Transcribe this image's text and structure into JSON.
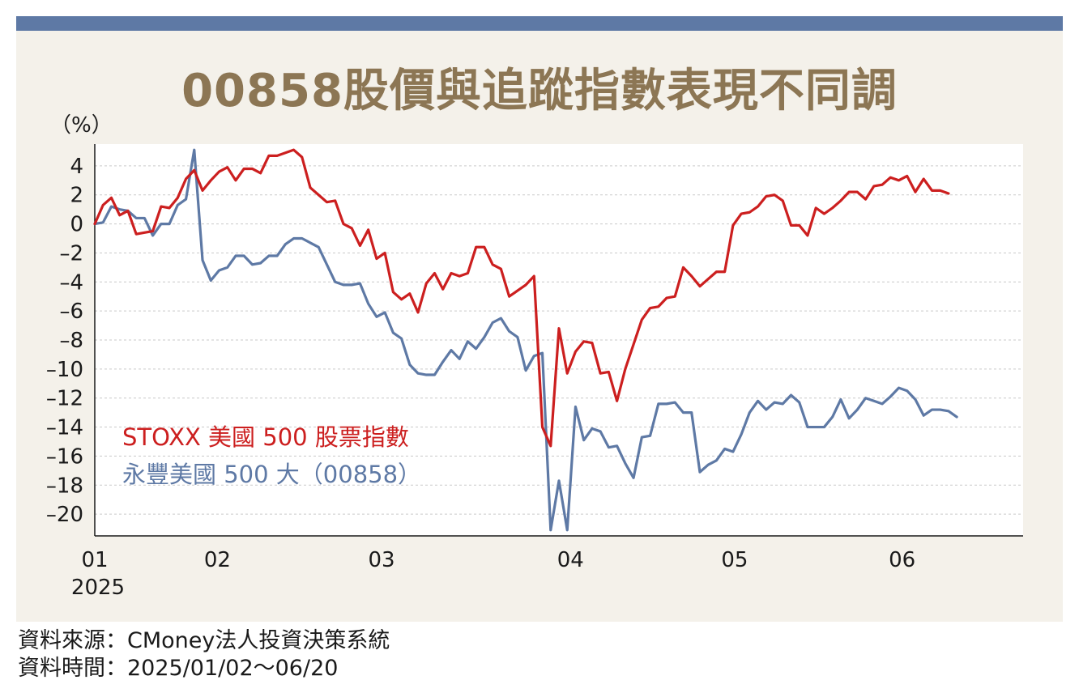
{
  "title": "00858股價與追蹤指數表現不同調",
  "footer": {
    "source": "資料來源：CMoney法人投資決策系統",
    "period": "資料時間：2025/01/02～06/20"
  },
  "colors": {
    "series_1": "#cc1f1f",
    "series_2": "#5e79a5",
    "title": "#8c7654",
    "top_bar": "#5e79a5"
  },
  "chart_data": {
    "type": "line",
    "ylabel": "（%）",
    "ylim": [
      -21.5,
      5.5
    ],
    "yticks": [
      4,
      2,
      0,
      -2,
      -4,
      -6,
      -8,
      -10,
      -12,
      -14,
      -16,
      -18,
      -20
    ],
    "ytick_labels": [
      "4",
      "2",
      "0",
      "–2",
      "–4",
      "–6",
      "–8",
      "–10",
      "–12",
      "–14",
      "–16",
      "–18",
      "–20"
    ],
    "xlim": [
      0,
      112
    ],
    "xticks": [
      {
        "pos": 0,
        "label": "01",
        "sublabel": "2025"
      },
      {
        "pos": 14.8,
        "label": "02",
        "sublabel": ""
      },
      {
        "pos": 34.6,
        "label": "03",
        "sublabel": ""
      },
      {
        "pos": 57.4,
        "label": "04",
        "sublabel": ""
      },
      {
        "pos": 77.2,
        "label": "05",
        "sublabel": ""
      },
      {
        "pos": 97.4,
        "label": "06",
        "sublabel": ""
      }
    ],
    "grid": true,
    "series": [
      {
        "name": "STOXX 美國 500 股票指數",
        "values": [
          0,
          1.3,
          1.8,
          0.6,
          0.9,
          -0.7,
          -0.6,
          -0.5,
          1.2,
          1.1,
          1.8,
          3.1,
          3.7,
          2.3,
          3.0,
          3.6,
          3.9,
          3.0,
          3.8,
          3.8,
          3.5,
          4.7,
          4.7,
          4.9,
          5.1,
          4.6,
          2.5,
          2.0,
          1.5,
          1.6,
          0,
          -0.3,
          -1.5,
          -0.4,
          -2.4,
          -2.0,
          -4.7,
          -5.2,
          -4.8,
          -6.1,
          -4.1,
          -3.4,
          -4.5,
          -3.4,
          -3.6,
          -3.4,
          -1.6,
          -1.6,
          -2.8,
          -3.1,
          -5.0,
          -4.6,
          -4.2,
          -3.6,
          -14.0,
          -15.3,
          -7.2,
          -10.3,
          -8.8,
          -8.1,
          -8.2,
          -10.3,
          -10.2,
          -12.2,
          -10.0,
          -8.3,
          -6.6,
          -5.8,
          -5.7,
          -5.1,
          -5.0,
          -3.0,
          -3.6,
          -4.3,
          -3.8,
          -3.3,
          -3.3,
          -0.1,
          0.7,
          0.8,
          1.2,
          1.9,
          2.0,
          1.6,
          -0.1,
          -0.1,
          -0.8,
          1.1,
          0.7,
          1.1,
          1.6,
          2.2,
          2.2,
          1.7,
          2.6,
          2.7,
          3.2,
          3.0,
          3.3,
          2.2,
          3.1,
          2.3,
          2.3,
          2.1
        ]
      },
      {
        "name": "永豐美國 500 大（00858）",
        "values": [
          0,
          0.1,
          1.2,
          1.0,
          0.9,
          0.4,
          0.4,
          -0.8,
          0,
          0,
          1.3,
          1.7,
          5.1,
          -2.5,
          -3.9,
          -3.2,
          -3.0,
          -2.2,
          -2.2,
          -2.8,
          -2.7,
          -2.2,
          -2.2,
          -1.4,
          -1.0,
          -1.0,
          -1.3,
          -1.6,
          -2.8,
          -4.0,
          -4.2,
          -4.2,
          -4.1,
          -5.5,
          -6.4,
          -6.1,
          -7.5,
          -7.9,
          -9.7,
          -10.3,
          -10.4,
          -10.4,
          -9.5,
          -8.7,
          -9.3,
          -8.1,
          -8.6,
          -7.8,
          -6.8,
          -6.5,
          -7.4,
          -7.8,
          -10.1,
          -9.1,
          -8.9,
          -21.1,
          -17.7,
          -21.1,
          -12.6,
          -14.9,
          -14.1,
          -14.3,
          -15.4,
          -15.3,
          -16.5,
          -17.5,
          -14.7,
          -14.6,
          -12.4,
          -12.4,
          -12.3,
          -13.0,
          -13.0,
          -17.1,
          -16.6,
          -16.3,
          -15.5,
          -15.7,
          -14.5,
          -13.0,
          -12.2,
          -12.8,
          -12.3,
          -12.4,
          -11.8,
          -12.3,
          -14.0,
          -14.0,
          -14.0,
          -13.3,
          -12.1,
          -13.4,
          -12.8,
          -12.0,
          -12.2,
          -12.4,
          -11.9,
          -11.3,
          -11.5,
          -12.1,
          -13.2,
          -12.8,
          -12.8,
          -12.9,
          -13.3
        ]
      }
    ]
  }
}
